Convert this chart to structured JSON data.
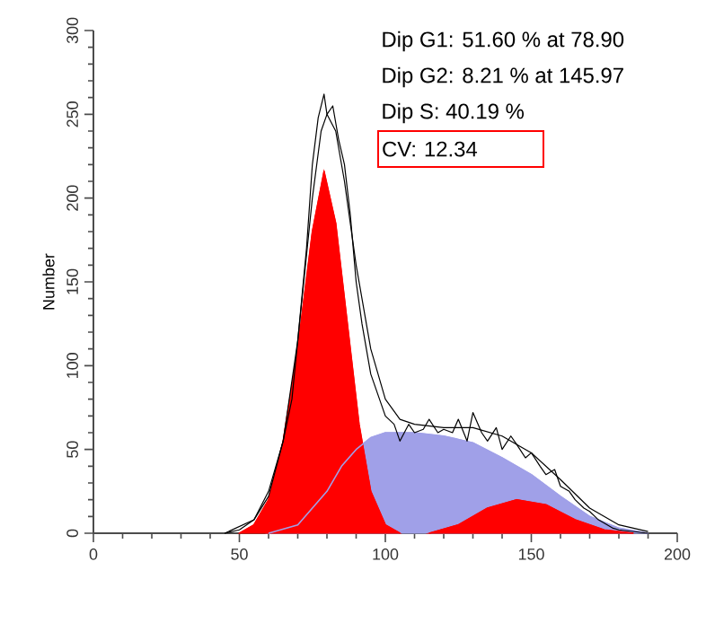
{
  "chart_data": {
    "type": "area",
    "ylabel": "Number",
    "xlim": [
      0,
      200
    ],
    "ylim": [
      0,
      300
    ],
    "xticks": [
      0,
      50,
      100,
      150,
      200
    ],
    "yticks": [
      0,
      50,
      100,
      150,
      200,
      250,
      300
    ],
    "grid": false,
    "annotations": [
      "Dip G1: 51.60 % at 78.90",
      "Dip G2: 8.21 % at 145.97",
      "Dip S: 40.19 %",
      "CV: 12.34"
    ],
    "series": [
      {
        "color": "#ff0000",
        "x": [
          50,
          55,
          60,
          65,
          70,
          75,
          79,
          83,
          87,
          91,
          95,
          100,
          105
        ],
        "values": [
          0,
          5,
          20,
          55,
          110,
          180,
          216,
          185,
          125,
          65,
          25,
          5,
          0
        ]
      },
      {
        "color": "#ff0000",
        "x": [
          115,
          125,
          135,
          145,
          155,
          165,
          175,
          185
        ],
        "values": [
          0,
          5,
          15,
          20,
          17,
          8,
          2,
          0
        ]
      },
      {
        "color": "#a0a0e8",
        "x": [
          60,
          70,
          75,
          80,
          85,
          90,
          95,
          100,
          110,
          120,
          130,
          140,
          150,
          160,
          170,
          180,
          190
        ],
        "values": [
          0,
          5,
          15,
          25,
          40,
          50,
          57,
          60,
          60,
          58,
          54,
          45,
          35,
          22,
          10,
          3,
          0
        ]
      },
      {
        "type": "line",
        "color": "#000000",
        "x": [
          45,
          55,
          60,
          65,
          70,
          75,
          78,
          80,
          83,
          86,
          90,
          95,
          100,
          105,
          110,
          120,
          130,
          140,
          150,
          160,
          170,
          180,
          190
        ],
        "values": [
          0,
          8,
          22,
          55,
          115,
          200,
          240,
          250,
          240,
          210,
          160,
          110,
          80,
          68,
          65,
          63,
          63,
          58,
          48,
          32,
          15,
          5,
          1
        ]
      },
      {
        "type": "line",
        "color": "#000000",
        "x": [
          45,
          50,
          55,
          60,
          65,
          68,
          70,
          73,
          75,
          77,
          79,
          80,
          82,
          84,
          86,
          88,
          90,
          92,
          95,
          98,
          100,
          103,
          105,
          108,
          110,
          113,
          115,
          118,
          120,
          123,
          125,
          128,
          130,
          133,
          135,
          138,
          140,
          143,
          145,
          148,
          150,
          153,
          155,
          158,
          160,
          163,
          165,
          168,
          170,
          173,
          175,
          178,
          180,
          185,
          190
        ],
        "values": [
          0,
          2,
          8,
          25,
          55,
          80,
          115,
          170,
          220,
          248,
          262,
          250,
          255,
          235,
          220,
          190,
          150,
          125,
          95,
          80,
          70,
          65,
          55,
          65,
          60,
          62,
          68,
          60,
          62,
          60,
          68,
          55,
          72,
          60,
          55,
          63,
          50,
          58,
          53,
          45,
          48,
          40,
          35,
          38,
          28,
          25,
          20,
          15,
          13,
          8,
          6,
          3,
          2,
          1,
          0
        ]
      }
    ]
  }
}
